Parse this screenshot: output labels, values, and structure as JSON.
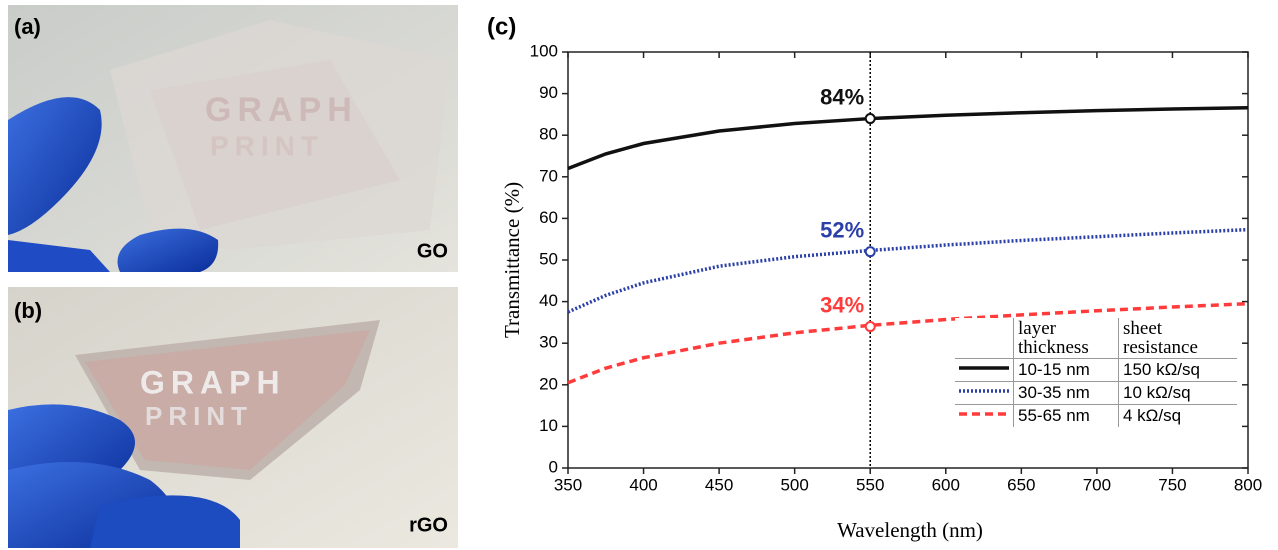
{
  "panels": [
    {
      "label": "(a)",
      "caption": "GO",
      "logo": [
        "GRAPH",
        "PRINT"
      ]
    },
    {
      "label": "(b)",
      "caption": "rGO",
      "logo": [
        "GRAPH",
        "PRINT"
      ]
    }
  ],
  "chart_data": {
    "type": "line",
    "panel_label": "(c)",
    "xlabel": "Wavelength (nm)",
    "ylabel": "Transmittance (%)",
    "x": [
      350,
      375,
      400,
      450,
      500,
      550,
      600,
      650,
      700,
      750,
      800
    ],
    "xlim": [
      350,
      800
    ],
    "xticks": [
      350,
      400,
      450,
      500,
      550,
      600,
      650,
      700,
      750,
      800
    ],
    "ylim": [
      0,
      100
    ],
    "yticks": [
      0,
      10,
      20,
      30,
      40,
      50,
      60,
      70,
      80,
      90,
      100
    ],
    "series": [
      {
        "name": "10-15 nm",
        "resistance": "150 kΩ/sq",
        "color": "#111111",
        "style": "solid",
        "values": [
          72,
          75.5,
          78,
          81,
          82.8,
          84,
          84.8,
          85.4,
          85.9,
          86.3,
          86.6
        ]
      },
      {
        "name": "30-35 nm",
        "resistance": "10 kΩ/sq",
        "color": "#2b3fa8",
        "style": "dotted",
        "values": [
          37.5,
          41.5,
          44.5,
          48.5,
          50.8,
          52.3,
          53.6,
          54.7,
          55.6,
          56.5,
          57.3
        ]
      },
      {
        "name": "55-65 nm",
        "resistance": "4 kΩ/sq",
        "color": "#ff3b3b",
        "style": "dashed",
        "values": [
          20.5,
          24,
          26.5,
          30,
          32.5,
          34.3,
          35.7,
          36.8,
          37.8,
          38.7,
          39.5
        ]
      }
    ],
    "legend_headers": [
      "layer thickness",
      "sheet resistance"
    ],
    "vline": 550,
    "markers": [
      {
        "x": 550,
        "y": 84,
        "label": "84%",
        "color": "#111111"
      },
      {
        "x": 550,
        "y": 52,
        "label": "52%",
        "color": "#2b3fa8"
      },
      {
        "x": 550,
        "y": 34,
        "label": "34%",
        "color": "#ff3b3b"
      }
    ]
  }
}
